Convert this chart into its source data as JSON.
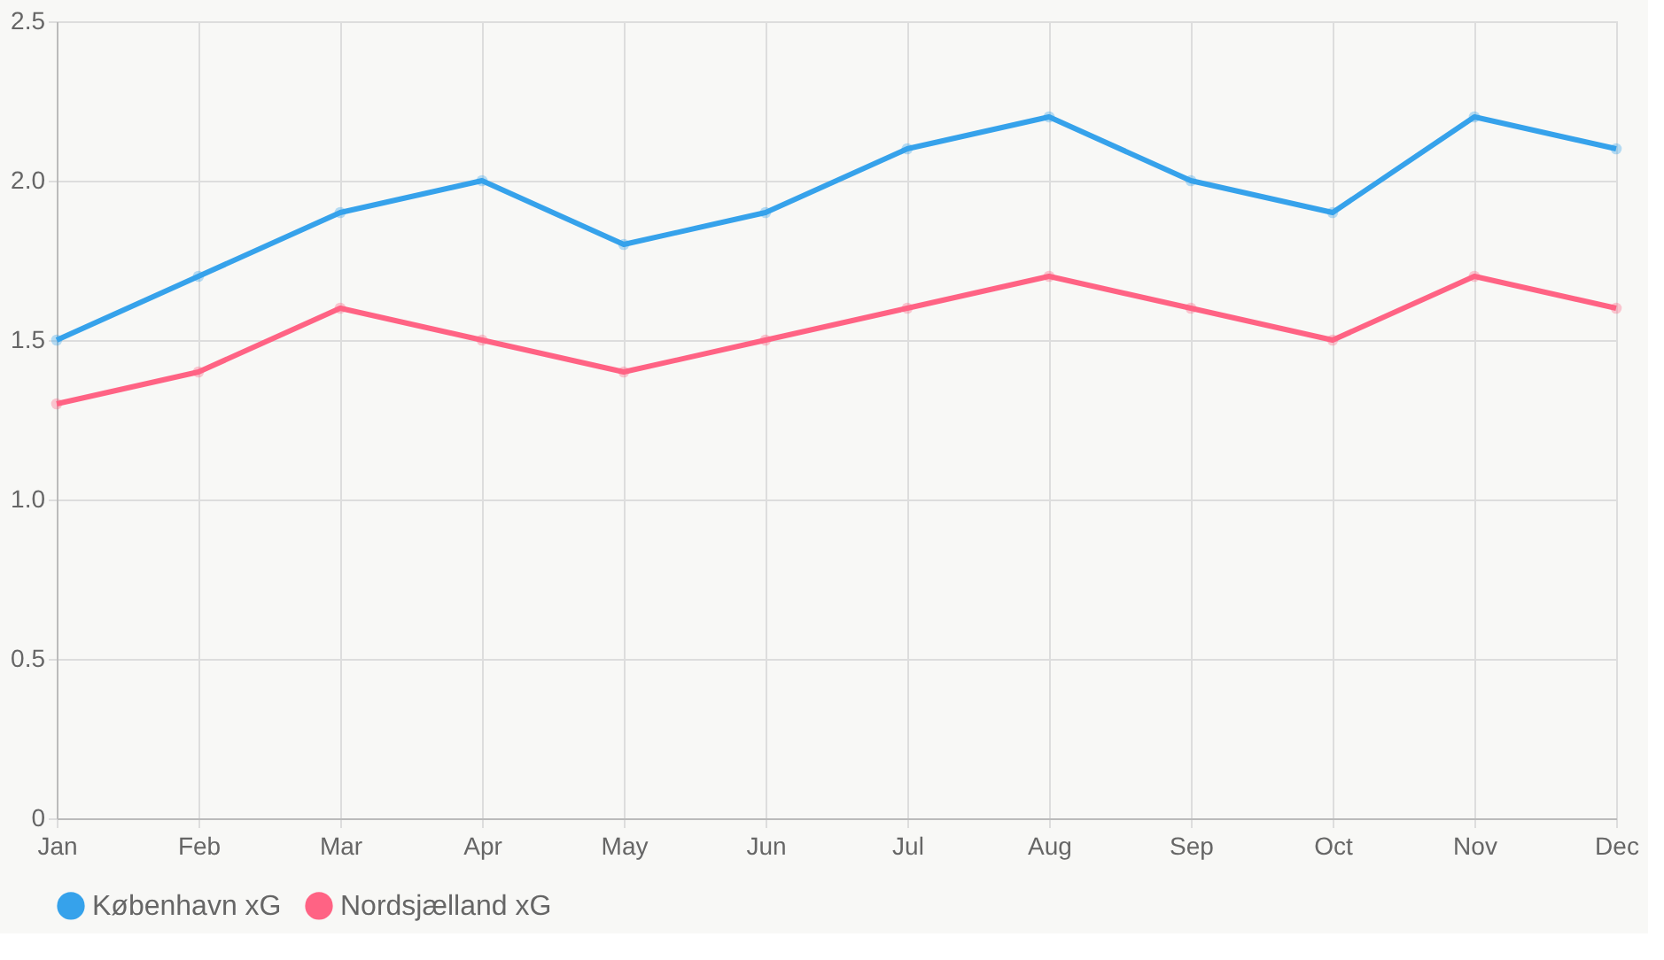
{
  "chart_data": {
    "type": "line",
    "categories": [
      "Jan",
      "Feb",
      "Mar",
      "Apr",
      "May",
      "Jun",
      "Jul",
      "Aug",
      "Sep",
      "Oct",
      "Nov",
      "Dec"
    ],
    "series": [
      {
        "name": "København xG",
        "color": "#36a2eb",
        "values": [
          1.5,
          1.7,
          1.9,
          2.0,
          1.8,
          1.9,
          2.1,
          2.2,
          2.0,
          1.9,
          2.2,
          2.1
        ]
      },
      {
        "name": "Nordsjælland xG",
        "color": "#ff6384",
        "values": [
          1.3,
          1.4,
          1.6,
          1.5,
          1.4,
          1.5,
          1.6,
          1.7,
          1.6,
          1.5,
          1.7,
          1.6
        ]
      }
    ],
    "ylim": [
      0,
      2.5
    ],
    "yticks": [
      0,
      0.5,
      {
        "value": 1,
        "label": "1.0"
      },
      1.5,
      {
        "value": 2,
        "label": "2.0"
      },
      2.5
    ],
    "grid": true,
    "legend": "bottom",
    "marker": "circle",
    "line_style": "solid"
  }
}
